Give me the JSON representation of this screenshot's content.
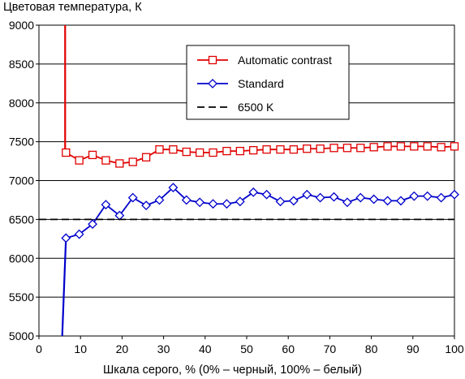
{
  "chart_data": {
    "type": "line",
    "title": "",
    "ylabel": "Цветовая температура, К",
    "xlabel": "Шкала серого, % (0% – черный, 100% – белый)",
    "xlim": [
      0,
      100
    ],
    "ylim": [
      5000,
      9000
    ],
    "xticks": [
      "0",
      "10",
      "20",
      "30",
      "40",
      "50",
      "60",
      "70",
      "80",
      "90",
      "100"
    ],
    "yticks": [
      "5000",
      "5500",
      "6000",
      "6500",
      "7000",
      "7500",
      "8000",
      "8500",
      "9000"
    ],
    "grid": "horizontal",
    "legend_position": "top-center",
    "series": [
      {
        "name": "Automatic contrast",
        "color": "#e00000",
        "marker": "square",
        "dashed": false,
        "x": [
          6.5,
          9.7,
          12.9,
          16.1,
          19.4,
          22.6,
          25.8,
          29.0,
          32.3,
          35.5,
          38.7,
          41.9,
          45.2,
          48.4,
          51.6,
          54.8,
          58.1,
          61.3,
          64.5,
          67.7,
          71.0,
          74.2,
          77.4,
          80.6,
          83.9,
          87.1,
          90.3,
          93.5,
          96.8,
          100
        ],
        "y": [
          7360,
          7260,
          7330,
          7260,
          7220,
          7240,
          7300,
          7400,
          7400,
          7370,
          7360,
          7360,
          7380,
          7380,
          7390,
          7400,
          7400,
          7400,
          7410,
          7410,
          7420,
          7420,
          7420,
          7430,
          7440,
          7440,
          7440,
          7440,
          7430,
          7440
        ]
      },
      {
        "name": "Standard",
        "color": "#0000cc",
        "marker": "diamond",
        "dashed": false,
        "x": [
          6.5,
          9.7,
          12.9,
          16.1,
          19.4,
          22.6,
          25.8,
          29.0,
          32.3,
          35.5,
          38.7,
          41.9,
          45.2,
          48.4,
          51.6,
          54.8,
          58.1,
          61.3,
          64.5,
          67.7,
          71.0,
          74.2,
          77.4,
          80.6,
          83.9,
          87.1,
          90.3,
          93.5,
          96.8,
          100
        ],
        "y": [
          6260,
          6310,
          6440,
          6690,
          6550,
          6780,
          6680,
          6750,
          6910,
          6750,
          6720,
          6700,
          6700,
          6730,
          6850,
          6820,
          6730,
          6740,
          6820,
          6780,
          6790,
          6720,
          6780,
          6760,
          6740,
          6740,
          6800,
          6800,
          6780,
          6820
        ]
      },
      {
        "name": "6500 K",
        "color": "#000000",
        "dashed": true,
        "x": [
          0,
          100
        ],
        "y": [
          6500,
          6500
        ]
      }
    ],
    "lead_in": [
      {
        "series": "Automatic contrast",
        "x": [
          6.3,
          6.3
        ],
        "y": [
          9000,
          7360
        ]
      },
      {
        "series": "Standard",
        "x": [
          5.6,
          6.5
        ],
        "y": [
          5000,
          6260
        ]
      }
    ]
  }
}
